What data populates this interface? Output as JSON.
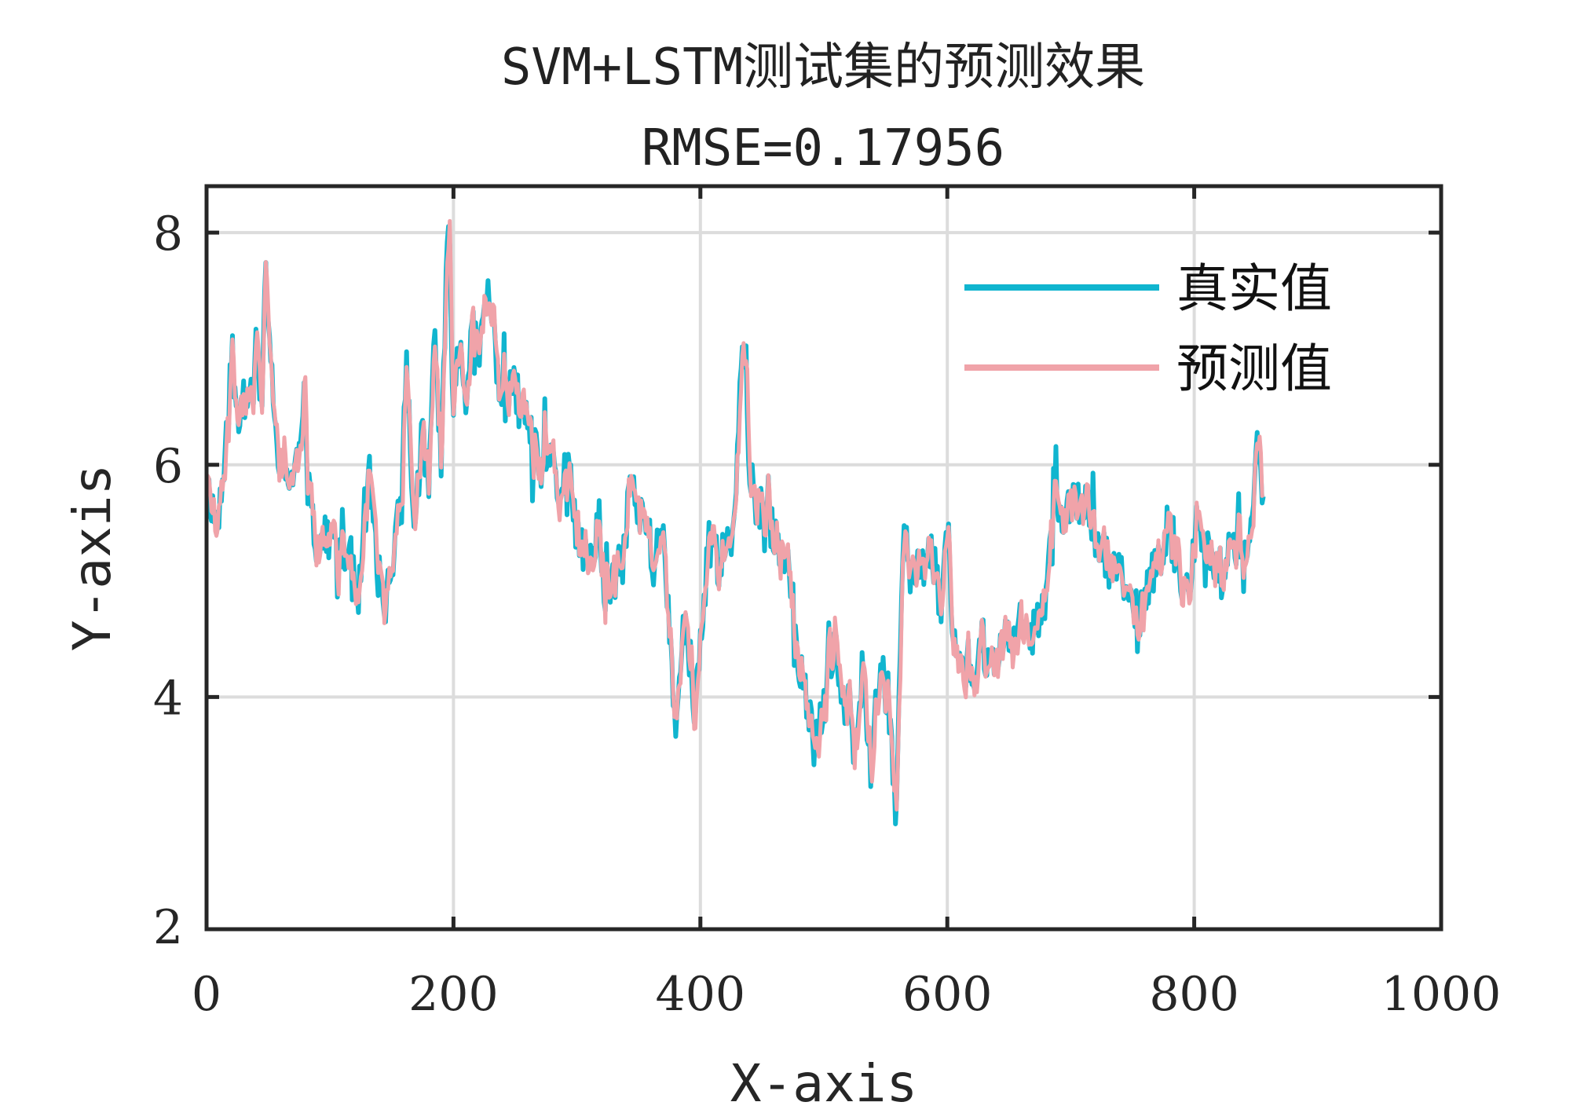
{
  "chart_data": {
    "type": "line",
    "title": "SVM+LSTM测试集的预测效果",
    "subtitle": "RMSE=0.17956",
    "xlabel": "X-axis",
    "ylabel": "Y-axis",
    "xlim": [
      0,
      1000
    ],
    "ylim": [
      2,
      8.4
    ],
    "xticks": [
      0,
      200,
      400,
      600,
      800,
      1000
    ],
    "yticks": [
      2,
      4,
      6,
      8
    ],
    "xtick_labels": [
      "0",
      "200",
      "400",
      "600",
      "800",
      "1000"
    ],
    "ytick_labels": [
      "2",
      "4",
      "6",
      "8"
    ],
    "grid": true,
    "legend_position": "top-right",
    "n_points": 857,
    "anchors": [
      [
        0,
        5.9
      ],
      [
        8,
        5.45
      ],
      [
        15,
        6.0
      ],
      [
        20,
        6.9
      ],
      [
        25,
        6.45
      ],
      [
        35,
        6.6
      ],
      [
        40,
        7.05
      ],
      [
        45,
        6.55
      ],
      [
        48,
        7.7
      ],
      [
        55,
        6.3
      ],
      [
        62,
        5.95
      ],
      [
        68,
        5.85
      ],
      [
        75,
        6.1
      ],
      [
        80,
        6.4
      ],
      [
        85,
        5.6
      ],
      [
        90,
        5.3
      ],
      [
        100,
        5.4
      ],
      [
        110,
        5.15
      ],
      [
        118,
        5.35
      ],
      [
        122,
        4.7
      ],
      [
        128,
        5.4
      ],
      [
        132,
        5.95
      ],
      [
        138,
        5.1
      ],
      [
        145,
        4.8
      ],
      [
        152,
        5.3
      ],
      [
        158,
        5.7
      ],
      [
        162,
        6.9
      ],
      [
        168,
        5.4
      ],
      [
        175,
        6.3
      ],
      [
        180,
        5.8
      ],
      [
        185,
        7.2
      ],
      [
        190,
        6.0
      ],
      [
        196,
        8.1
      ],
      [
        200,
        6.5
      ],
      [
        205,
        7.1
      ],
      [
        210,
        6.6
      ],
      [
        215,
        7.25
      ],
      [
        220,
        6.9
      ],
      [
        228,
        7.5
      ],
      [
        235,
        6.9
      ],
      [
        240,
        6.5
      ],
      [
        248,
        6.7
      ],
      [
        255,
        6.4
      ],
      [
        262,
        6.3
      ],
      [
        270,
        5.95
      ],
      [
        278,
        6.1
      ],
      [
        285,
        5.7
      ],
      [
        292,
        6.05
      ],
      [
        300,
        5.4
      ],
      [
        310,
        5.1
      ],
      [
        318,
        5.55
      ],
      [
        322,
        4.85
      ],
      [
        330,
        5.0
      ],
      [
        338,
        5.2
      ],
      [
        343,
        5.9
      ],
      [
        350,
        5.55
      ],
      [
        358,
        5.5
      ],
      [
        362,
        5.0
      ],
      [
        368,
        5.6
      ],
      [
        375,
        4.65
      ],
      [
        380,
        3.7
      ],
      [
        388,
        4.8
      ],
      [
        395,
        3.8
      ],
      [
        400,
        4.4
      ],
      [
        408,
        5.6
      ],
      [
        415,
        5.1
      ],
      [
        420,
        5.3
      ],
      [
        428,
        5.5
      ],
      [
        434,
        7.2
      ],
      [
        440,
        6.0
      ],
      [
        445,
        5.6
      ],
      [
        452,
        5.6
      ],
      [
        460,
        5.4
      ],
      [
        468,
        5.2
      ],
      [
        475,
        4.9
      ],
      [
        480,
        4.3
      ],
      [
        486,
        4.0
      ],
      [
        492,
        3.55
      ],
      [
        500,
        3.9
      ],
      [
        505,
        4.2
      ],
      [
        510,
        4.55
      ],
      [
        515,
        3.85
      ],
      [
        520,
        4.0
      ],
      [
        525,
        3.5
      ],
      [
        532,
        4.3
      ],
      [
        538,
        3.35
      ],
      [
        542,
        3.9
      ],
      [
        548,
        4.2
      ],
      [
        555,
        3.7
      ],
      [
        558,
        2.85
      ],
      [
        565,
        5.4
      ],
      [
        570,
        5.1
      ],
      [
        575,
        5.0
      ],
      [
        580,
        5.3
      ],
      [
        588,
        5.2
      ],
      [
        595,
        4.8
      ],
      [
        600,
        5.5
      ],
      [
        605,
        4.5
      ],
      [
        610,
        4.25
      ],
      [
        618,
        4.3
      ],
      [
        622,
        4.05
      ],
      [
        628,
        4.45
      ],
      [
        635,
        4.3
      ],
      [
        640,
        4.25
      ],
      [
        648,
        4.5
      ],
      [
        655,
        4.4
      ],
      [
        662,
        4.8
      ],
      [
        668,
        4.55
      ],
      [
        674,
        4.7
      ],
      [
        680,
        4.9
      ],
      [
        686,
        5.85
      ],
      [
        692,
        5.5
      ],
      [
        698,
        5.6
      ],
      [
        705,
        5.7
      ],
      [
        712,
        5.7
      ],
      [
        718,
        5.5
      ],
      [
        725,
        5.3
      ],
      [
        732,
        5.1
      ],
      [
        738,
        5.2
      ],
      [
        744,
        4.9
      ],
      [
        750,
        4.8
      ],
      [
        758,
        4.7
      ],
      [
        765,
        5.05
      ],
      [
        772,
        5.2
      ],
      [
        778,
        5.45
      ],
      [
        785,
        5.25
      ],
      [
        790,
        4.9
      ],
      [
        796,
        4.85
      ],
      [
        802,
        5.6
      ],
      [
        808,
        5.3
      ],
      [
        815,
        5.15
      ],
      [
        822,
        5.0
      ],
      [
        828,
        5.3
      ],
      [
        834,
        5.3
      ],
      [
        840,
        5.15
      ],
      [
        846,
        5.45
      ],
      [
        850,
        6.25
      ],
      [
        853,
        6.15
      ],
      [
        856,
        5.7
      ]
    ],
    "series": [
      {
        "name": "真实值",
        "color": "#10b5cf",
        "seed": 11,
        "noise_amplitude": 0.2
      },
      {
        "name": "预测值",
        "color": "#f0a3a9",
        "seed": 29,
        "noise_amplitude": 0.14
      }
    ]
  }
}
